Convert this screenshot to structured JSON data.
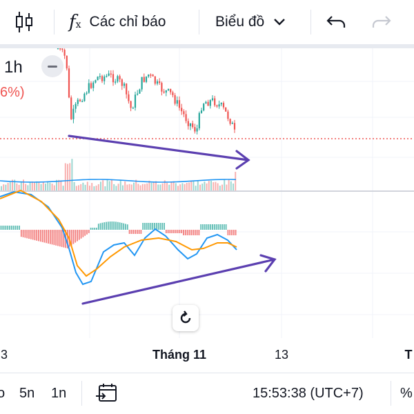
{
  "toolbar": {
    "indicators_label": "Các chỉ báo",
    "chart_type_label": "Biểu đồ"
  },
  "legend": {
    "interval": "1h",
    "change": "6%)"
  },
  "time_axis": {
    "labels": [
      "3",
      "Tháng 11",
      "13",
      "T"
    ]
  },
  "bottom_bar": {
    "timeframes": [
      "o",
      "5n",
      "1n"
    ],
    "clock": "15:53:38 (UTC+7)",
    "percent": "%"
  },
  "colors": {
    "up": "#26a69a",
    "down": "#ef5350",
    "ma_blue": "#2196f3",
    "ma_orange": "#ff9800",
    "annotation": "#5b3fb0"
  }
}
